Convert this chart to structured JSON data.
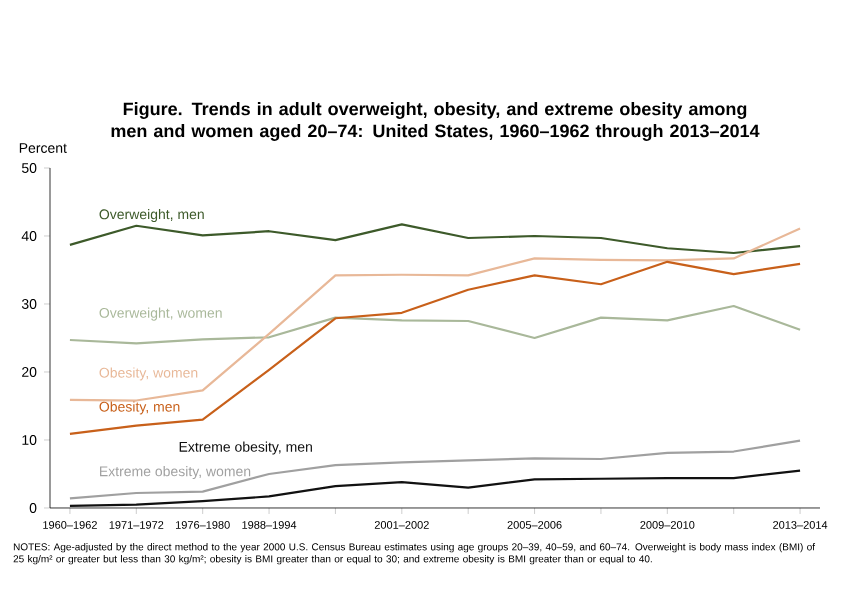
{
  "chart_data": {
    "type": "line",
    "title": "Figure. Trends in adult overweight, obesity, and extreme obesity among men and women aged 20–74: United States, 1960–1962 through 2013–2014",
    "ylabel": "Percent",
    "categories": [
      "1960–1962",
      "1971–1972",
      "1976–1980",
      "1988–1994",
      null,
      "2001–2002",
      null,
      "2005–2006",
      null,
      "2009–2010",
      null,
      "2013–2014"
    ],
    "series": [
      {
        "name": "Overweight, men",
        "color": "#3d5a2a",
        "values": [
          38.7,
          41.5,
          40.1,
          40.7,
          39.4,
          41.7,
          39.7,
          40.0,
          39.7,
          38.2,
          37.5,
          38.5
        ]
      },
      {
        "name": "Overweight, women",
        "color": "#a9b89a",
        "values": [
          24.7,
          24.2,
          24.8,
          25.1,
          28.0,
          27.6,
          27.5,
          25.0,
          28.0,
          27.6,
          29.7,
          26.2
        ]
      },
      {
        "name": "Obesity, women",
        "color": "#e8b898",
        "values": [
          15.9,
          15.8,
          17.3,
          25.6,
          34.2,
          34.3,
          34.2,
          36.7,
          36.5,
          36.4,
          36.7,
          41.1
        ]
      },
      {
        "name": "Obesity, men",
        "color": "#c8601a",
        "values": [
          10.9,
          12.1,
          13.0,
          20.3,
          27.9,
          28.7,
          32.1,
          34.2,
          32.9,
          36.2,
          34.4,
          35.9
        ]
      },
      {
        "name": "Extreme obesity, women",
        "color": "#a0a0a0",
        "values": [
          1.4,
          2.2,
          2.4,
          5.0,
          6.3,
          6.7,
          7.0,
          7.3,
          7.2,
          8.1,
          8.3,
          9.9
        ]
      },
      {
        "name": "Extreme obesity, men",
        "color": "#111111",
        "values": [
          0.3,
          0.5,
          1.0,
          1.7,
          3.2,
          3.8,
          3.0,
          4.2,
          4.3,
          4.4,
          4.4,
          5.5
        ]
      }
    ],
    "ylim": [
      0,
      50
    ],
    "yticks": [
      0,
      10,
      20,
      30,
      40,
      50
    ],
    "grid": false,
    "annotations": [
      "NOTES: Age-adjusted by the direct method to the year 2000 U.S. Census Bureau estimates using age groups 20–39, 40–59, and 60–74. Overweight is body mass index (BMI) of 25 kg/m² or greater but less than 30 kg/m²; obesity is BMI greater than or equal to 30; and extreme obesity is BMI greater than or equal to 40."
    ]
  }
}
